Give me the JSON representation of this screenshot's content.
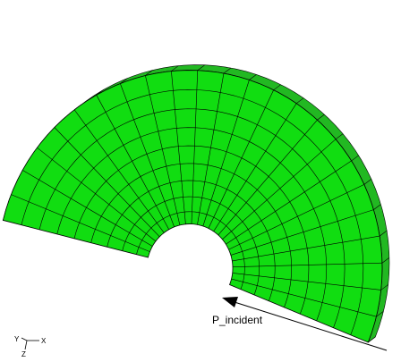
{
  "labels": {
    "load": "P_incident",
    "axes": {
      "y": "Y",
      "x": "X",
      "z": "Z"
    }
  }
}
